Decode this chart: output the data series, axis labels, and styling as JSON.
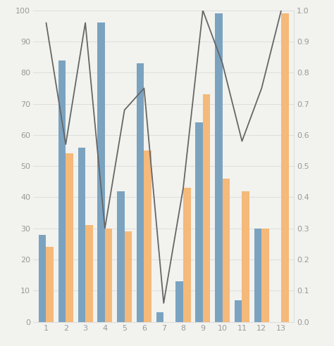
{
  "categories": [
    1,
    2,
    3,
    4,
    5,
    6,
    7,
    8,
    9,
    10,
    11,
    12,
    13
  ],
  "blue_bars": [
    28,
    84,
    56,
    96,
    42,
    83,
    3,
    13,
    64,
    99,
    7,
    30,
    0
  ],
  "orange_bars": [
    24,
    54,
    31,
    30,
    29,
    55,
    0,
    43,
    73,
    46,
    42,
    30,
    99
  ],
  "line_values": [
    0.96,
    0.57,
    0.96,
    0.3,
    0.68,
    0.75,
    0.06,
    0.43,
    1.0,
    0.83,
    0.58,
    0.75,
    1.0
  ],
  "blue_color": "#7ba3c0",
  "orange_color": "#f5b97a",
  "line_color": "#666666",
  "bg_color": "#f2f2ee",
  "ylim_left": [
    0,
    100
  ],
  "ylim_right": [
    0.0,
    1.0
  ],
  "bar_width": 0.38,
  "grid_color": "#dddddd",
  "line_width": 1.3
}
